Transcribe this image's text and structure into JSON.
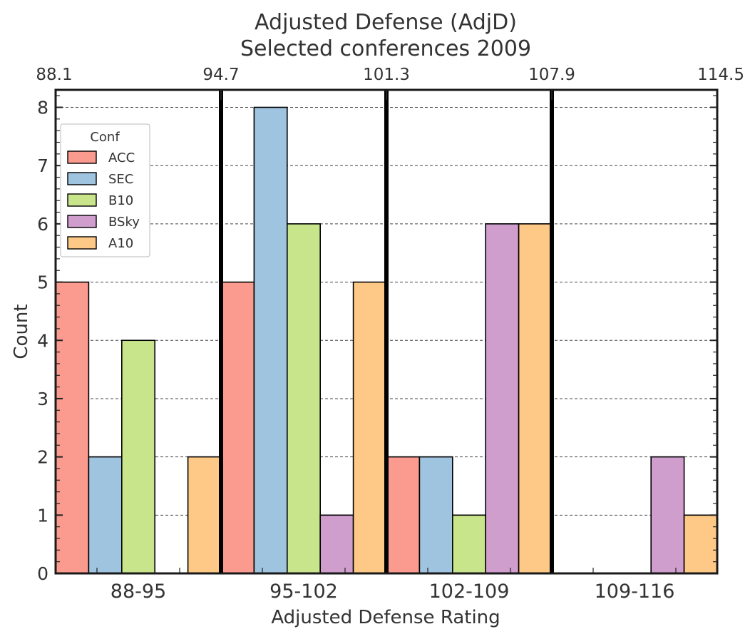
{
  "chart_data": {
    "type": "bar",
    "title": "Adjusted Defense (AdjD)",
    "subtitle": "Selected conferences 2009",
    "xlabel": "Adjusted Defense Rating",
    "ylabel": "Count",
    "categories": [
      "88-95",
      "95-102",
      "102-109",
      "109-116"
    ],
    "top_axis_ticks": [
      "88.1",
      "94.7",
      "101.3",
      "107.9",
      "114.5"
    ],
    "ylim": [
      0,
      8.3
    ],
    "yticks": [
      "0",
      "1",
      "2",
      "3",
      "4",
      "5",
      "6",
      "7",
      "8"
    ],
    "grid": "horizontal dashed",
    "legend": {
      "title": "Conf",
      "placement": "upper-left"
    },
    "series": [
      {
        "name": "ACC",
        "color": "#fb9a8e",
        "values": [
          5,
          5,
          2,
          0
        ]
      },
      {
        "name": "SEC",
        "color": "#9fc4df",
        "values": [
          2,
          8,
          2,
          0
        ]
      },
      {
        "name": "B10",
        "color": "#c8e58c",
        "values": [
          4,
          6,
          1,
          0
        ]
      },
      {
        "name": "BSky",
        "color": "#cf9ecd",
        "values": [
          0,
          1,
          6,
          2
        ]
      },
      {
        "name": "A10",
        "color": "#fec886",
        "values": [
          2,
          5,
          6,
          1
        ]
      }
    ]
  }
}
